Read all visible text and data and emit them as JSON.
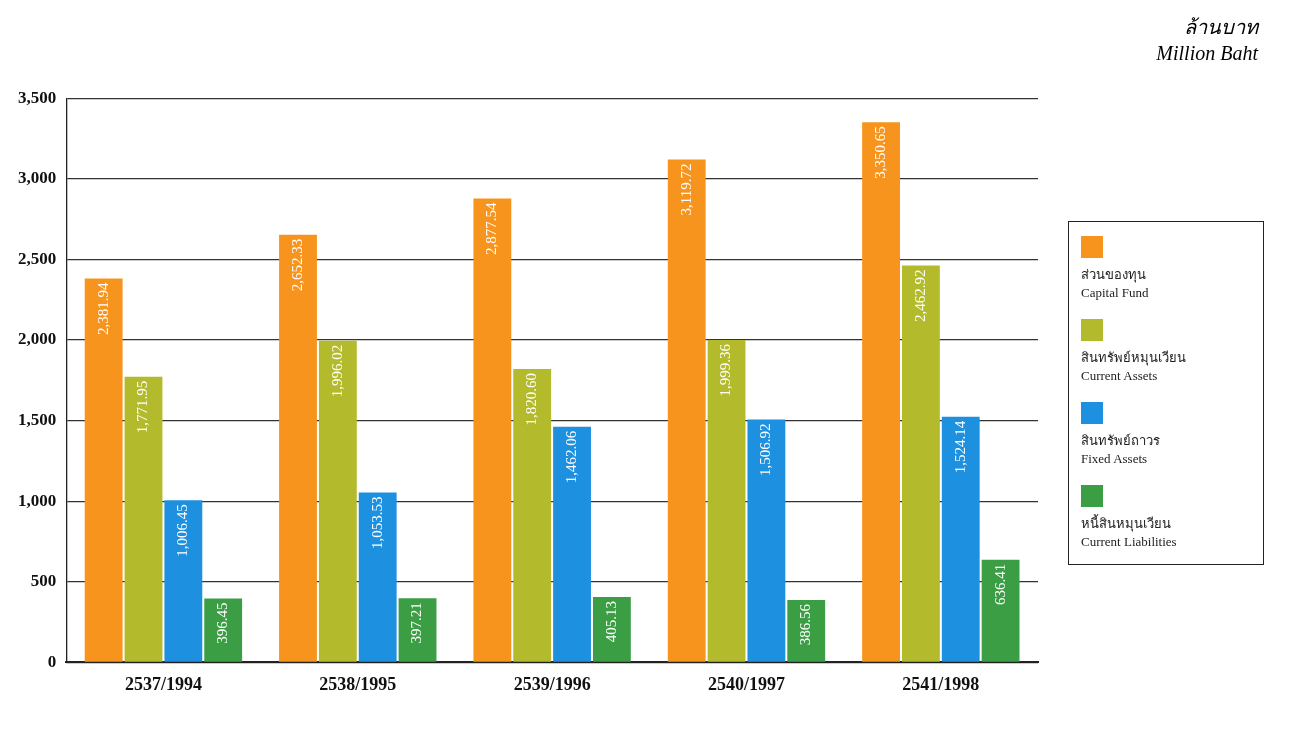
{
  "chart_data": {
    "type": "bar",
    "annotations": [
      "ล้านบาท",
      "Million Baht"
    ],
    "categories": [
      "2537/1994",
      "2538/1995",
      "2539/1996",
      "2540/1997",
      "2541/1998"
    ],
    "series": [
      {
        "name": "ส่วนของทุน\nCapital Fund",
        "color": "#f7941d",
        "values": [
          2381.94,
          2652.33,
          2877.54,
          3119.72,
          3350.65
        ],
        "value_labels": [
          "2,381.94",
          "2,652.33",
          "2,877.54",
          "3,119.72",
          "3,350.65"
        ]
      },
      {
        "name": "สินทรัพย์หมุนเวียน\nCurrent Assets",
        "color": "#b3bb2c",
        "values": [
          1771.95,
          1996.02,
          1820.6,
          1999.36,
          2462.92
        ],
        "value_labels": [
          "1,771.95",
          "1,996.02",
          "1,820.60",
          "1,999.36",
          "2,462.92"
        ]
      },
      {
        "name": "สินทรัพย์ถาวร\nFixed Assets",
        "color": "#1e90e0",
        "values": [
          1006.45,
          1053.53,
          1462.06,
          1506.92,
          1524.14
        ],
        "value_labels": [
          "1,006.45",
          "1,053.53",
          "1,462.06",
          "1,506.92",
          "1,524.14"
        ]
      },
      {
        "name": "หนี้สินหมุนเวียน\nCurrent Liabilities",
        "color": "#3c9e44",
        "values": [
          396.45,
          397.21,
          405.13,
          386.56,
          636.41
        ],
        "value_labels": [
          "396.45",
          "397.21",
          "405.13",
          "386.56",
          "636.41"
        ]
      }
    ],
    "ylim": [
      0,
      3500
    ],
    "yticks": [
      0,
      500,
      {
        "value": 1000,
        "label": "1,000"
      },
      {
        "value": 1500,
        "label": "1,500"
      },
      {
        "value": 2000,
        "label": "2,000"
      },
      {
        "value": 2500,
        "label": "2,500"
      },
      {
        "value": 3000,
        "label": "3,000"
      },
      {
        "value": 3500,
        "label": "3,500"
      }
    ],
    "grid": "y",
    "legend": "right"
  }
}
